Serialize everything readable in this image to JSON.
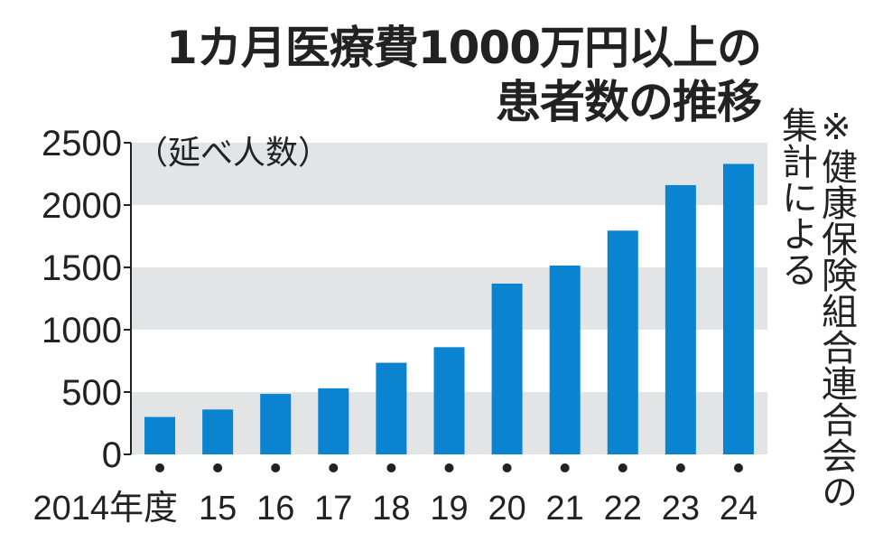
{
  "chart_data": {
    "type": "bar",
    "title": "1カ月医療費1000万円以上の患者数の推移",
    "title_lines": [
      "1カ月医療費1000万円以上の",
      "患者数の推移"
    ],
    "ylabel": "（延べ人数）",
    "note": "※健康保険組合連合会の集計による",
    "categories": [
      "2014年度",
      "15",
      "16",
      "17",
      "18",
      "19",
      "20",
      "21",
      "22",
      "23",
      "24"
    ],
    "values": [
      300,
      360,
      485,
      530,
      735,
      860,
      1370,
      1515,
      1795,
      2160,
      2330
    ],
    "yticks": [
      "0",
      "500",
      "1000",
      "1500",
      "2000",
      "2500"
    ],
    "ylim": [
      0,
      2500
    ],
    "grid": "alternating bands",
    "colors": {
      "bar": "#0a84d0",
      "band": "#e3e4e5",
      "text": "#222222"
    }
  }
}
